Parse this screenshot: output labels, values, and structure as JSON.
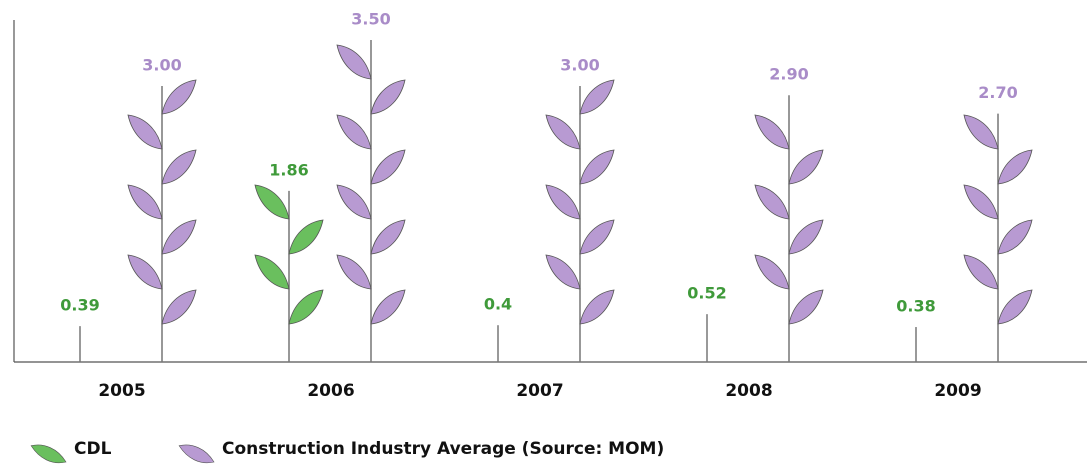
{
  "chart_data": {
    "type": "pictograph",
    "categories": [
      "2005",
      "2006",
      "2007",
      "2008",
      "2009"
    ],
    "series": [
      {
        "name": "CDL",
        "color": "#6abf5e",
        "values": [
          0.39,
          1.86,
          0.4,
          0.52,
          0.38
        ],
        "value_labels": [
          "0.39",
          "1.86",
          "0.4",
          "0.52",
          "0.38"
        ]
      },
      {
        "name": "Construction Industry Average (Source: MOM)",
        "color": "#b89ad2",
        "values": [
          3.0,
          3.5,
          3.0,
          2.9,
          2.7
        ],
        "value_labels": [
          "3.00",
          "3.50",
          "3.00",
          "2.90",
          "2.70"
        ]
      }
    ]
  }
}
